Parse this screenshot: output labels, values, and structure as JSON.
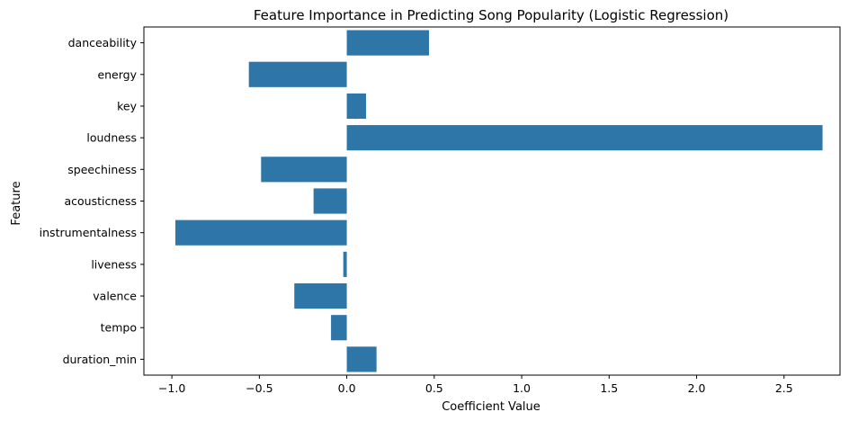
{
  "chart_data": {
    "type": "bar",
    "orientation": "horizontal",
    "title": "Feature Importance in Predicting Song Popularity (Logistic Regression)",
    "xlabel": "Coefficient Value",
    "ylabel": "Feature",
    "categories": [
      "danceability",
      "energy",
      "key",
      "loudness",
      "speechiness",
      "acousticness",
      "instrumentalness",
      "liveness",
      "valence",
      "tempo",
      "duration_min"
    ],
    "values": [
      0.47,
      -0.56,
      0.11,
      2.72,
      -0.49,
      -0.19,
      -0.98,
      -0.02,
      -0.3,
      -0.09,
      0.17
    ],
    "xlim": [
      -1.16,
      2.82
    ],
    "xticks": [
      -1.0,
      -0.5,
      0.0,
      0.5,
      1.0,
      1.5,
      2.0,
      2.5
    ],
    "xtick_labels": [
      "−1.0",
      "−0.5",
      "0.0",
      "0.5",
      "1.0",
      "1.5",
      "2.0",
      "2.5"
    ],
    "bar_color": "#2e75a8",
    "grid": false,
    "legend": "none"
  }
}
